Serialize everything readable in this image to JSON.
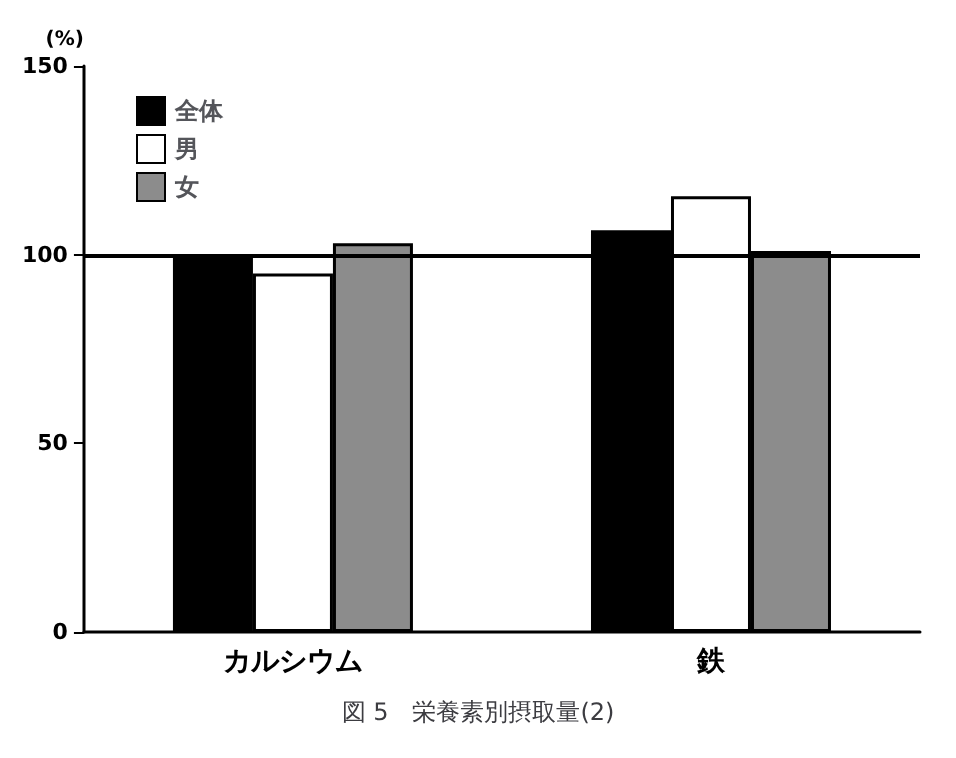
{
  "chart_data": {
    "type": "bar",
    "title": "図 5　栄養素別摂取量(2)",
    "ylabel": "(%)",
    "categories": [
      "カルシウム",
      "鉄"
    ],
    "series": [
      {
        "name": "全体",
        "color": "#000000",
        "values": [
          100,
          106.5
        ]
      },
      {
        "name": "男",
        "color": "#ffffff",
        "values": [
          95,
          115.5
        ]
      },
      {
        "name": "女",
        "color": "#8c8c8c",
        "values": [
          103,
          101
        ]
      }
    ],
    "ylim": [
      0,
      150
    ],
    "yticks": [
      0,
      50,
      100,
      150
    ],
    "grid": false,
    "legend": "top left",
    "ref_lines": [
      {
        "axis": "y",
        "value": 100,
        "color": "#000000",
        "line_style": "solid"
      }
    ]
  }
}
